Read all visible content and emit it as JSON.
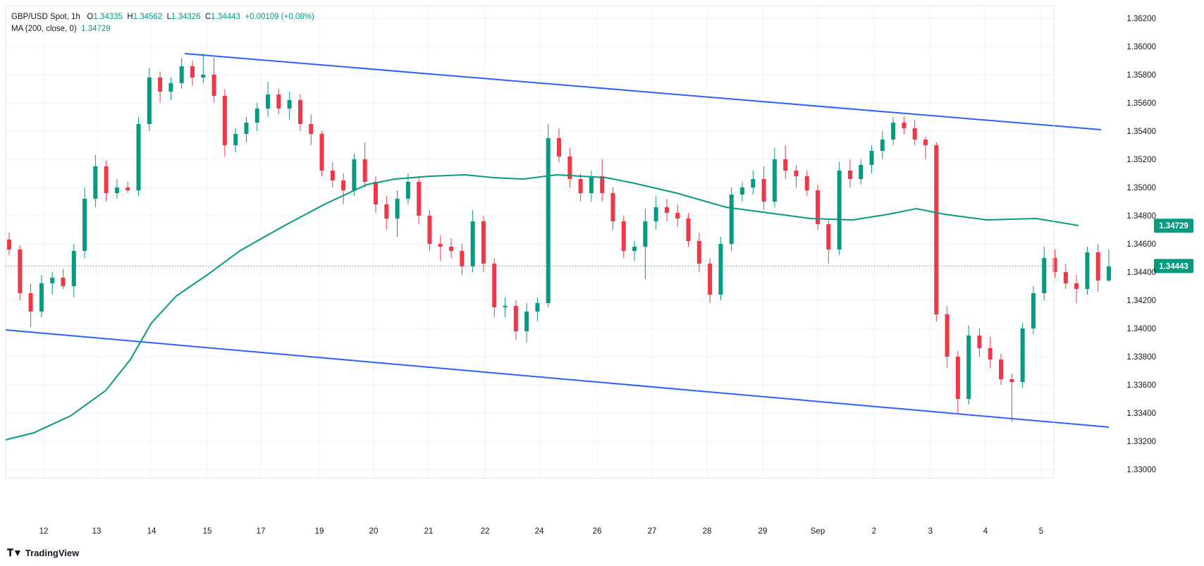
{
  "legend": {
    "symbol": "GBP/USD Spot, 1h",
    "open_label": "O",
    "open": "1.34335",
    "high_label": "H",
    "high": "1.34562",
    "low_label": "L",
    "low": "1.34326",
    "close_label": "C",
    "close": "1.34443",
    "change": "+0.00109 (+0.08%)",
    "ma_label": "MA (200, close, 0)",
    "ma_value": "1.34729"
  },
  "brand": "TradingView",
  "colors": {
    "up": "#089981",
    "down": "#f23645",
    "ma": "#089981",
    "channel": "#2962ff",
    "grid": "#f0f3fa",
    "axis_text": "#131722",
    "ma_label_bg": "#089981",
    "price_label_bg": "#089981"
  },
  "chart_data": {
    "type": "candlestick",
    "title": "GBP/USD Spot, 1h",
    "y_axis": {
      "ticks": [
        "1.36200",
        "1.36000",
        "1.35800",
        "1.35600",
        "1.35400",
        "1.35200",
        "1.35000",
        "1.34800",
        "1.34600",
        "1.34400",
        "1.34200",
        "1.34000",
        "1.33800",
        "1.33600",
        "1.33400",
        "1.33200",
        "1.33000"
      ],
      "range": [
        1.3293,
        1.3626
      ]
    },
    "x_axis": {
      "ticks": [
        "12",
        "13",
        "14",
        "15",
        "17",
        "19",
        "20",
        "21",
        "22",
        "24",
        "26",
        "27",
        "28",
        "29",
        "Sep",
        "2",
        "3",
        "4",
        "5"
      ]
    },
    "last_price_label": "1.34443",
    "ma_price_label": "1.34729",
    "last_price": 1.34443,
    "channel": {
      "upper": [
        {
          "x": "14",
          "y": 1.3595
        },
        {
          "x": "4",
          "y": 1.3541
        }
      ],
      "lower": [
        {
          "x": "11",
          "y": 1.3399
        },
        {
          "x": "4",
          "y": 1.333
        }
      ]
    },
    "ma_200": [
      {
        "x": "11",
        "y": 1.3321
      },
      {
        "x": "12",
        "y": 1.3326
      },
      {
        "x": "12.5",
        "y": 1.3338
      },
      {
        "x": "13",
        "y": 1.3356
      },
      {
        "x": "13.5",
        "y": 1.3378
      },
      {
        "x": "14",
        "y": 1.3404
      },
      {
        "x": "14.5",
        "y": 1.3423
      },
      {
        "x": "15",
        "y": 1.3438
      },
      {
        "x": "17",
        "y": 1.3455
      },
      {
        "x": "17.5",
        "y": 1.3472
      },
      {
        "x": "19",
        "y": 1.3488
      },
      {
        "x": "20",
        "y": 1.3502
      },
      {
        "x": "20.5",
        "y": 1.3506
      },
      {
        "x": "21",
        "y": 1.3508
      },
      {
        "x": "21.5",
        "y": 1.3509
      },
      {
        "x": "22",
        "y": 1.3507
      },
      {
        "x": "23",
        "y": 1.3506
      },
      {
        "x": "24",
        "y": 1.3509
      },
      {
        "x": "25",
        "y": 1.3507
      },
      {
        "x": "26",
        "y": 1.3503
      },
      {
        "x": "27",
        "y": 1.3496
      },
      {
        "x": "28",
        "y": 1.3486
      },
      {
        "x": "29",
        "y": 1.3482
      },
      {
        "x": "30",
        "y": 1.3478
      },
      {
        "x": "Sep",
        "y": 1.3477
      },
      {
        "x": "1",
        "y": 1.3481
      },
      {
        "x": "2",
        "y": 1.3485
      },
      {
        "x": "2.5",
        "y": 1.3481
      },
      {
        "x": "3",
        "y": 1.3477
      },
      {
        "x": "3.5",
        "y": 1.3478
      },
      {
        "x": "4",
        "y": 1.3473
      }
    ],
    "candles": [
      {
        "x": "11",
        "o": 1.3463,
        "h": 1.3468,
        "l": 1.3452,
        "c": 1.3456
      },
      {
        "x": "11",
        "o": 1.3456,
        "h": 1.3459,
        "l": 1.342,
        "c": 1.3425
      },
      {
        "x": "11",
        "o": 1.3425,
        "h": 1.3432,
        "l": 1.3401,
        "c": 1.3412
      },
      {
        "x": "12",
        "o": 1.3412,
        "h": 1.3438,
        "l": 1.3408,
        "c": 1.3432
      },
      {
        "x": "12",
        "o": 1.3432,
        "h": 1.344,
        "l": 1.3424,
        "c": 1.3436
      },
      {
        "x": "12",
        "o": 1.3436,
        "h": 1.3442,
        "l": 1.3428,
        "c": 1.343
      },
      {
        "x": "12",
        "o": 1.343,
        "h": 1.346,
        "l": 1.3422,
        "c": 1.3455
      },
      {
        "x": "12",
        "o": 1.3455,
        "h": 1.35,
        "l": 1.345,
        "c": 1.3492
      },
      {
        "x": "12",
        "o": 1.3492,
        "h": 1.3523,
        "l": 1.3486,
        "c": 1.3515
      },
      {
        "x": "12",
        "o": 1.3515,
        "h": 1.3519,
        "l": 1.349,
        "c": 1.3496
      },
      {
        "x": "13",
        "o": 1.3496,
        "h": 1.3506,
        "l": 1.3492,
        "c": 1.35
      },
      {
        "x": "13",
        "o": 1.35,
        "h": 1.3504,
        "l": 1.3496,
        "c": 1.3498
      },
      {
        "x": "13",
        "o": 1.3498,
        "h": 1.355,
        "l": 1.3494,
        "c": 1.3545
      },
      {
        "x": "13",
        "o": 1.3545,
        "h": 1.3585,
        "l": 1.354,
        "c": 1.3578
      },
      {
        "x": "13",
        "o": 1.3578,
        "h": 1.3582,
        "l": 1.356,
        "c": 1.3568
      },
      {
        "x": "13",
        "o": 1.3568,
        "h": 1.3578,
        "l": 1.3562,
        "c": 1.3574
      },
      {
        "x": "14",
        "o": 1.3574,
        "h": 1.3592,
        "l": 1.357,
        "c": 1.3586
      },
      {
        "x": "14",
        "o": 1.3586,
        "h": 1.359,
        "l": 1.3572,
        "c": 1.3578
      },
      {
        "x": "14",
        "o": 1.3578,
        "h": 1.3595,
        "l": 1.3574,
        "c": 1.358
      },
      {
        "x": "14",
        "o": 1.358,
        "h": 1.3592,
        "l": 1.356,
        "c": 1.3565
      },
      {
        "x": "15",
        "o": 1.3565,
        "h": 1.357,
        "l": 1.3522,
        "c": 1.353
      },
      {
        "x": "15",
        "o": 1.353,
        "h": 1.3542,
        "l": 1.3525,
        "c": 1.3538
      },
      {
        "x": "15",
        "o": 1.3538,
        "h": 1.355,
        "l": 1.3532,
        "c": 1.3546
      },
      {
        "x": "15",
        "o": 1.3546,
        "h": 1.356,
        "l": 1.354,
        "c": 1.3556
      },
      {
        "x": "17",
        "o": 1.3556,
        "h": 1.3575,
        "l": 1.355,
        "c": 1.3566
      },
      {
        "x": "17",
        "o": 1.3566,
        "h": 1.357,
        "l": 1.3552,
        "c": 1.3556
      },
      {
        "x": "17",
        "o": 1.3556,
        "h": 1.3568,
        "l": 1.3548,
        "c": 1.3562
      },
      {
        "x": "17",
        "o": 1.3562,
        "h": 1.3566,
        "l": 1.354,
        "c": 1.3545
      },
      {
        "x": "17",
        "o": 1.3545,
        "h": 1.3552,
        "l": 1.353,
        "c": 1.3538
      },
      {
        "x": "19",
        "o": 1.3538,
        "h": 1.354,
        "l": 1.3508,
        "c": 1.3512
      },
      {
        "x": "19",
        "o": 1.3512,
        "h": 1.3518,
        "l": 1.35,
        "c": 1.3505
      },
      {
        "x": "19",
        "o": 1.3505,
        "h": 1.351,
        "l": 1.3488,
        "c": 1.3498
      },
      {
        "x": "19",
        "o": 1.3498,
        "h": 1.3524,
        "l": 1.3494,
        "c": 1.352
      },
      {
        "x": "19",
        "o": 1.352,
        "h": 1.3532,
        "l": 1.35,
        "c": 1.3504
      },
      {
        "x": "20",
        "o": 1.3504,
        "h": 1.3508,
        "l": 1.3482,
        "c": 1.3488
      },
      {
        "x": "20",
        "o": 1.3488,
        "h": 1.3494,
        "l": 1.347,
        "c": 1.3478
      },
      {
        "x": "20",
        "o": 1.3478,
        "h": 1.3498,
        "l": 1.3465,
        "c": 1.3492
      },
      {
        "x": "20",
        "o": 1.3492,
        "h": 1.351,
        "l": 1.3488,
        "c": 1.3504
      },
      {
        "x": "20",
        "o": 1.3504,
        "h": 1.3508,
        "l": 1.3474,
        "c": 1.348
      },
      {
        "x": "21",
        "o": 1.348,
        "h": 1.3484,
        "l": 1.3455,
        "c": 1.346
      },
      {
        "x": "21",
        "o": 1.346,
        "h": 1.3466,
        "l": 1.3448,
        "c": 1.3458
      },
      {
        "x": "21",
        "o": 1.3458,
        "h": 1.3464,
        "l": 1.345,
        "c": 1.3455
      },
      {
        "x": "21",
        "o": 1.3455,
        "h": 1.346,
        "l": 1.3438,
        "c": 1.3444
      },
      {
        "x": "21",
        "o": 1.3444,
        "h": 1.3484,
        "l": 1.344,
        "c": 1.3476
      },
      {
        "x": "21",
        "o": 1.3476,
        "h": 1.348,
        "l": 1.344,
        "c": 1.3446
      },
      {
        "x": "22",
        "o": 1.3446,
        "h": 1.345,
        "l": 1.3408,
        "c": 1.3415
      },
      {
        "x": "22",
        "o": 1.3415,
        "h": 1.3422,
        "l": 1.3408,
        "c": 1.3416
      },
      {
        "x": "22",
        "o": 1.3416,
        "h": 1.342,
        "l": 1.3392,
        "c": 1.3398
      },
      {
        "x": "22",
        "o": 1.3398,
        "h": 1.3418,
        "l": 1.339,
        "c": 1.3412
      },
      {
        "x": "22",
        "o": 1.3412,
        "h": 1.3422,
        "l": 1.3405,
        "c": 1.3418
      },
      {
        "x": "23",
        "o": 1.3418,
        "h": 1.3545,
        "l": 1.3415,
        "c": 1.3535
      },
      {
        "x": "23",
        "o": 1.3535,
        "h": 1.3542,
        "l": 1.3518,
        "c": 1.3522
      },
      {
        "x": "24",
        "o": 1.3522,
        "h": 1.3528,
        "l": 1.35,
        "c": 1.3506
      },
      {
        "x": "24",
        "o": 1.3506,
        "h": 1.351,
        "l": 1.349,
        "c": 1.3496
      },
      {
        "x": "24",
        "o": 1.3496,
        "h": 1.3512,
        "l": 1.349,
        "c": 1.3508
      },
      {
        "x": "24",
        "o": 1.3508,
        "h": 1.352,
        "l": 1.349,
        "c": 1.3496
      },
      {
        "x": "26",
        "o": 1.3496,
        "h": 1.35,
        "l": 1.347,
        "c": 1.3476
      },
      {
        "x": "26",
        "o": 1.3476,
        "h": 1.348,
        "l": 1.345,
        "c": 1.3455
      },
      {
        "x": "26",
        "o": 1.3455,
        "h": 1.3462,
        "l": 1.3448,
        "c": 1.3458
      },
      {
        "x": "26",
        "o": 1.3458,
        "h": 1.3485,
        "l": 1.3435,
        "c": 1.3476
      },
      {
        "x": "26",
        "o": 1.3476,
        "h": 1.3494,
        "l": 1.347,
        "c": 1.3486
      },
      {
        "x": "27",
        "o": 1.3486,
        "h": 1.3492,
        "l": 1.3476,
        "c": 1.3482
      },
      {
        "x": "27",
        "o": 1.3482,
        "h": 1.3488,
        "l": 1.3472,
        "c": 1.3478
      },
      {
        "x": "27",
        "o": 1.3478,
        "h": 1.3482,
        "l": 1.3458,
        "c": 1.3462
      },
      {
        "x": "27",
        "o": 1.3462,
        "h": 1.3468,
        "l": 1.344,
        "c": 1.3446
      },
      {
        "x": "27",
        "o": 1.3446,
        "h": 1.345,
        "l": 1.3418,
        "c": 1.3424
      },
      {
        "x": "27",
        "o": 1.3424,
        "h": 1.3465,
        "l": 1.342,
        "c": 1.346
      },
      {
        "x": "28",
        "o": 1.346,
        "h": 1.35,
        "l": 1.3455,
        "c": 1.3495
      },
      {
        "x": "28",
        "o": 1.3495,
        "h": 1.3504,
        "l": 1.349,
        "c": 1.35
      },
      {
        "x": "28",
        "o": 1.35,
        "h": 1.3512,
        "l": 1.3495,
        "c": 1.3506
      },
      {
        "x": "28",
        "o": 1.3506,
        "h": 1.3515,
        "l": 1.3484,
        "c": 1.349
      },
      {
        "x": "28",
        "o": 1.349,
        "h": 1.3528,
        "l": 1.3486,
        "c": 1.352
      },
      {
        "x": "29",
        "o": 1.352,
        "h": 1.353,
        "l": 1.3506,
        "c": 1.3512
      },
      {
        "x": "29",
        "o": 1.3512,
        "h": 1.3516,
        "l": 1.35,
        "c": 1.3508
      },
      {
        "x": "29",
        "o": 1.3508,
        "h": 1.3512,
        "l": 1.3494,
        "c": 1.3498
      },
      {
        "x": "29",
        "o": 1.3498,
        "h": 1.3502,
        "l": 1.347,
        "c": 1.3474
      },
      {
        "x": "29",
        "o": 1.3474,
        "h": 1.3478,
        "l": 1.3446,
        "c": 1.3456
      },
      {
        "x": "29",
        "o": 1.3456,
        "h": 1.3518,
        "l": 1.3452,
        "c": 1.3512
      },
      {
        "x": "Sep",
        "o": 1.3512,
        "h": 1.352,
        "l": 1.35,
        "c": 1.3506
      },
      {
        "x": "Sep",
        "o": 1.3506,
        "h": 1.352,
        "l": 1.3502,
        "c": 1.3516
      },
      {
        "x": "Sep",
        "o": 1.3516,
        "h": 1.353,
        "l": 1.351,
        "c": 1.3526
      },
      {
        "x": "Sep",
        "o": 1.3526,
        "h": 1.354,
        "l": 1.352,
        "c": 1.3534
      },
      {
        "x": "Sep",
        "o": 1.3534,
        "h": 1.355,
        "l": 1.353,
        "c": 1.3546
      },
      {
        "x": "2",
        "o": 1.3546,
        "h": 1.355,
        "l": 1.3538,
        "c": 1.3542
      },
      {
        "x": "2",
        "o": 1.3542,
        "h": 1.3548,
        "l": 1.353,
        "c": 1.3534
      },
      {
        "x": "2",
        "o": 1.3534,
        "h": 1.3536,
        "l": 1.352,
        "c": 1.353
      },
      {
        "x": "2",
        "o": 1.353,
        "h": 1.3532,
        "l": 1.3405,
        "c": 1.341
      },
      {
        "x": "2",
        "o": 1.341,
        "h": 1.3416,
        "l": 1.3372,
        "c": 1.338
      },
      {
        "x": "2",
        "o": 1.338,
        "h": 1.3384,
        "l": 1.334,
        "c": 1.335
      },
      {
        "x": "3",
        "o": 1.335,
        "h": 1.3402,
        "l": 1.3346,
        "c": 1.3395
      },
      {
        "x": "3",
        "o": 1.3395,
        "h": 1.34,
        "l": 1.338,
        "c": 1.3386
      },
      {
        "x": "3",
        "o": 1.3386,
        "h": 1.3394,
        "l": 1.3372,
        "c": 1.3378
      },
      {
        "x": "3",
        "o": 1.3378,
        "h": 1.3382,
        "l": 1.336,
        "c": 1.3364
      },
      {
        "x": "3",
        "o": 1.3364,
        "h": 1.3368,
        "l": 1.3334,
        "c": 1.3362
      },
      {
        "x": "3",
        "o": 1.3362,
        "h": 1.3404,
        "l": 1.3358,
        "c": 1.34
      },
      {
        "x": "4",
        "o": 1.34,
        "h": 1.343,
        "l": 1.3396,
        "c": 1.3425
      },
      {
        "x": "4",
        "o": 1.3425,
        "h": 1.3458,
        "l": 1.342,
        "c": 1.345
      },
      {
        "x": "4",
        "o": 1.345,
        "h": 1.3456,
        "l": 1.3436,
        "c": 1.344
      },
      {
        "x": "4",
        "o": 1.344,
        "h": 1.3446,
        "l": 1.3428,
        "c": 1.3432
      },
      {
        "x": "4",
        "o": 1.3432,
        "h": 1.3438,
        "l": 1.3418,
        "c": 1.3428
      },
      {
        "x": "4",
        "o": 1.3428,
        "h": 1.3458,
        "l": 1.3424,
        "c": 1.3454
      },
      {
        "x": "4",
        "o": 1.3454,
        "h": 1.346,
        "l": 1.3426,
        "c": 1.3434
      },
      {
        "x": "4",
        "o": 1.3434,
        "h": 1.3456,
        "l": 1.3433,
        "c": 1.3444
      }
    ]
  }
}
